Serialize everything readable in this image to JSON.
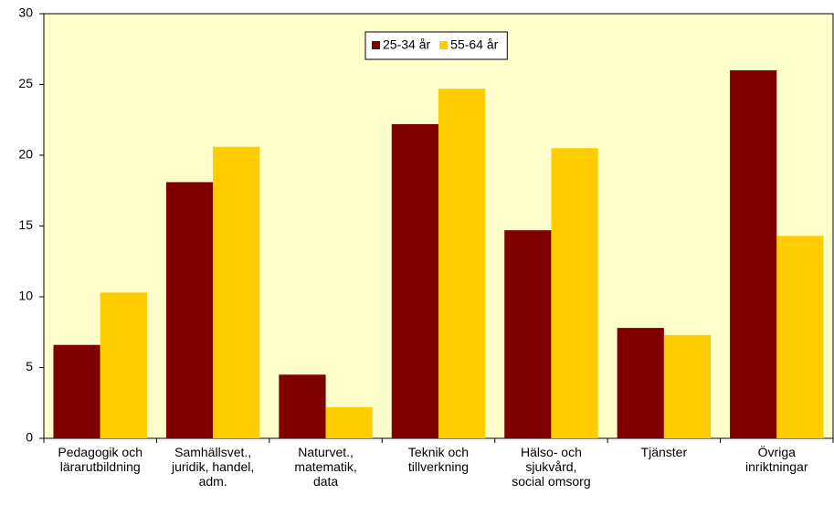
{
  "chart_data": {
    "type": "bar",
    "categories": [
      "Pedagogik och\nlärarutbildning",
      "Samhällsvet.,\njuridik, handel,\nadm.",
      "Naturvet.,\nmatematik,\ndata",
      "Teknik och\ntillverkning",
      "Hälso- och\nsjukvård,\nsocial omsorg",
      "Tjänster",
      "Övriga\ninriktningar"
    ],
    "series": [
      {
        "name": "25-34 år",
        "color": "#800000",
        "values": [
          6.6,
          18.1,
          4.5,
          22.2,
          14.7,
          7.8,
          26.0
        ]
      },
      {
        "name": "55-64 år",
        "color": "#ffcc00",
        "values": [
          10.3,
          20.6,
          2.2,
          24.7,
          20.5,
          7.3,
          14.3
        ]
      }
    ],
    "ylim": [
      0,
      30
    ],
    "yticks": [
      0,
      5,
      10,
      15,
      20,
      25,
      30
    ],
    "grid": false,
    "legend": "top"
  }
}
